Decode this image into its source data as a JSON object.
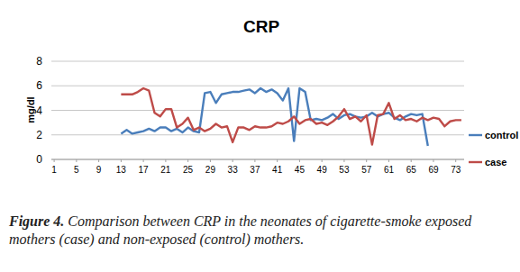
{
  "chart_data": {
    "type": "line",
    "title": "CRP",
    "y_label": "mg/dl",
    "caption": {
      "label": "Figure 4.",
      "text": "Comparison between CRP in the neonates of cigarette-smoke exposed mothers (case) and non-exposed (control) mothers."
    },
    "x": [
      13,
      14,
      15,
      16,
      17,
      18,
      19,
      20,
      21,
      22,
      23,
      24,
      25,
      26,
      27,
      28,
      29,
      30,
      31,
      32,
      33,
      34,
      35,
      36,
      37,
      38,
      39,
      40,
      41,
      42,
      43,
      44,
      45,
      46,
      47,
      48,
      49,
      50,
      51,
      52,
      53,
      54,
      55,
      56,
      57,
      58,
      59,
      60,
      61,
      62,
      63,
      64,
      65,
      66,
      67,
      68,
      69,
      70,
      71,
      72,
      73,
      74
    ],
    "xlim": [
      0.5,
      74.5
    ],
    "xticks": [
      1,
      5,
      9,
      13,
      17,
      21,
      25,
      29,
      33,
      37,
      41,
      45,
      49,
      53,
      57,
      61,
      65,
      69,
      73
    ],
    "ylim": [
      0,
      8
    ],
    "yticks": [
      0,
      2,
      4,
      6,
      8
    ],
    "grid": true,
    "legend": "right",
    "series": [
      {
        "name": "control",
        "color": "#4a7ebb",
        "values": [
          2.1,
          2.4,
          2.1,
          2.2,
          2.3,
          2.5,
          2.3,
          2.6,
          2.6,
          2.3,
          2.5,
          2.2,
          2.6,
          2.3,
          2.2,
          5.4,
          5.5,
          4.6,
          5.3,
          5.4,
          5.5,
          5.5,
          5.6,
          5.7,
          5.4,
          5.8,
          5.5,
          5.7,
          5.4,
          4.8,
          5.8,
          1.5,
          5.8,
          5.5,
          3.2,
          3.3,
          3.2,
          3.4,
          3.7,
          3.3,
          3.6,
          3.7,
          3.5,
          3.4,
          3.5,
          3.8,
          3.5,
          3.7,
          3.8,
          3.4,
          3.2,
          3.5,
          3.7,
          3.6,
          3.7,
          1.1,
          null,
          null,
          null,
          null,
          null,
          null
        ]
      },
      {
        "name": "case",
        "color": "#be4b48",
        "values": [
          5.3,
          5.3,
          5.3,
          5.5,
          5.8,
          5.6,
          3.8,
          3.5,
          4.1,
          4.1,
          2.6,
          2.9,
          3.4,
          2.4,
          2.6,
          2.3,
          2.5,
          2.9,
          2.6,
          2.7,
          1.4,
          2.6,
          2.6,
          2.4,
          2.7,
          2.6,
          2.6,
          2.7,
          3.0,
          2.9,
          3.1,
          3.5,
          2.9,
          3.2,
          3.3,
          2.9,
          3.0,
          2.8,
          3.1,
          3.5,
          4.1,
          3.3,
          3.5,
          3.1,
          3.6,
          1.2,
          3.6,
          3.7,
          4.6,
          3.3,
          3.6,
          3.2,
          3.3,
          3.1,
          3.4,
          3.2,
          3.4,
          3.3,
          2.7,
          3.1,
          3.2,
          3.2
        ]
      }
    ]
  }
}
